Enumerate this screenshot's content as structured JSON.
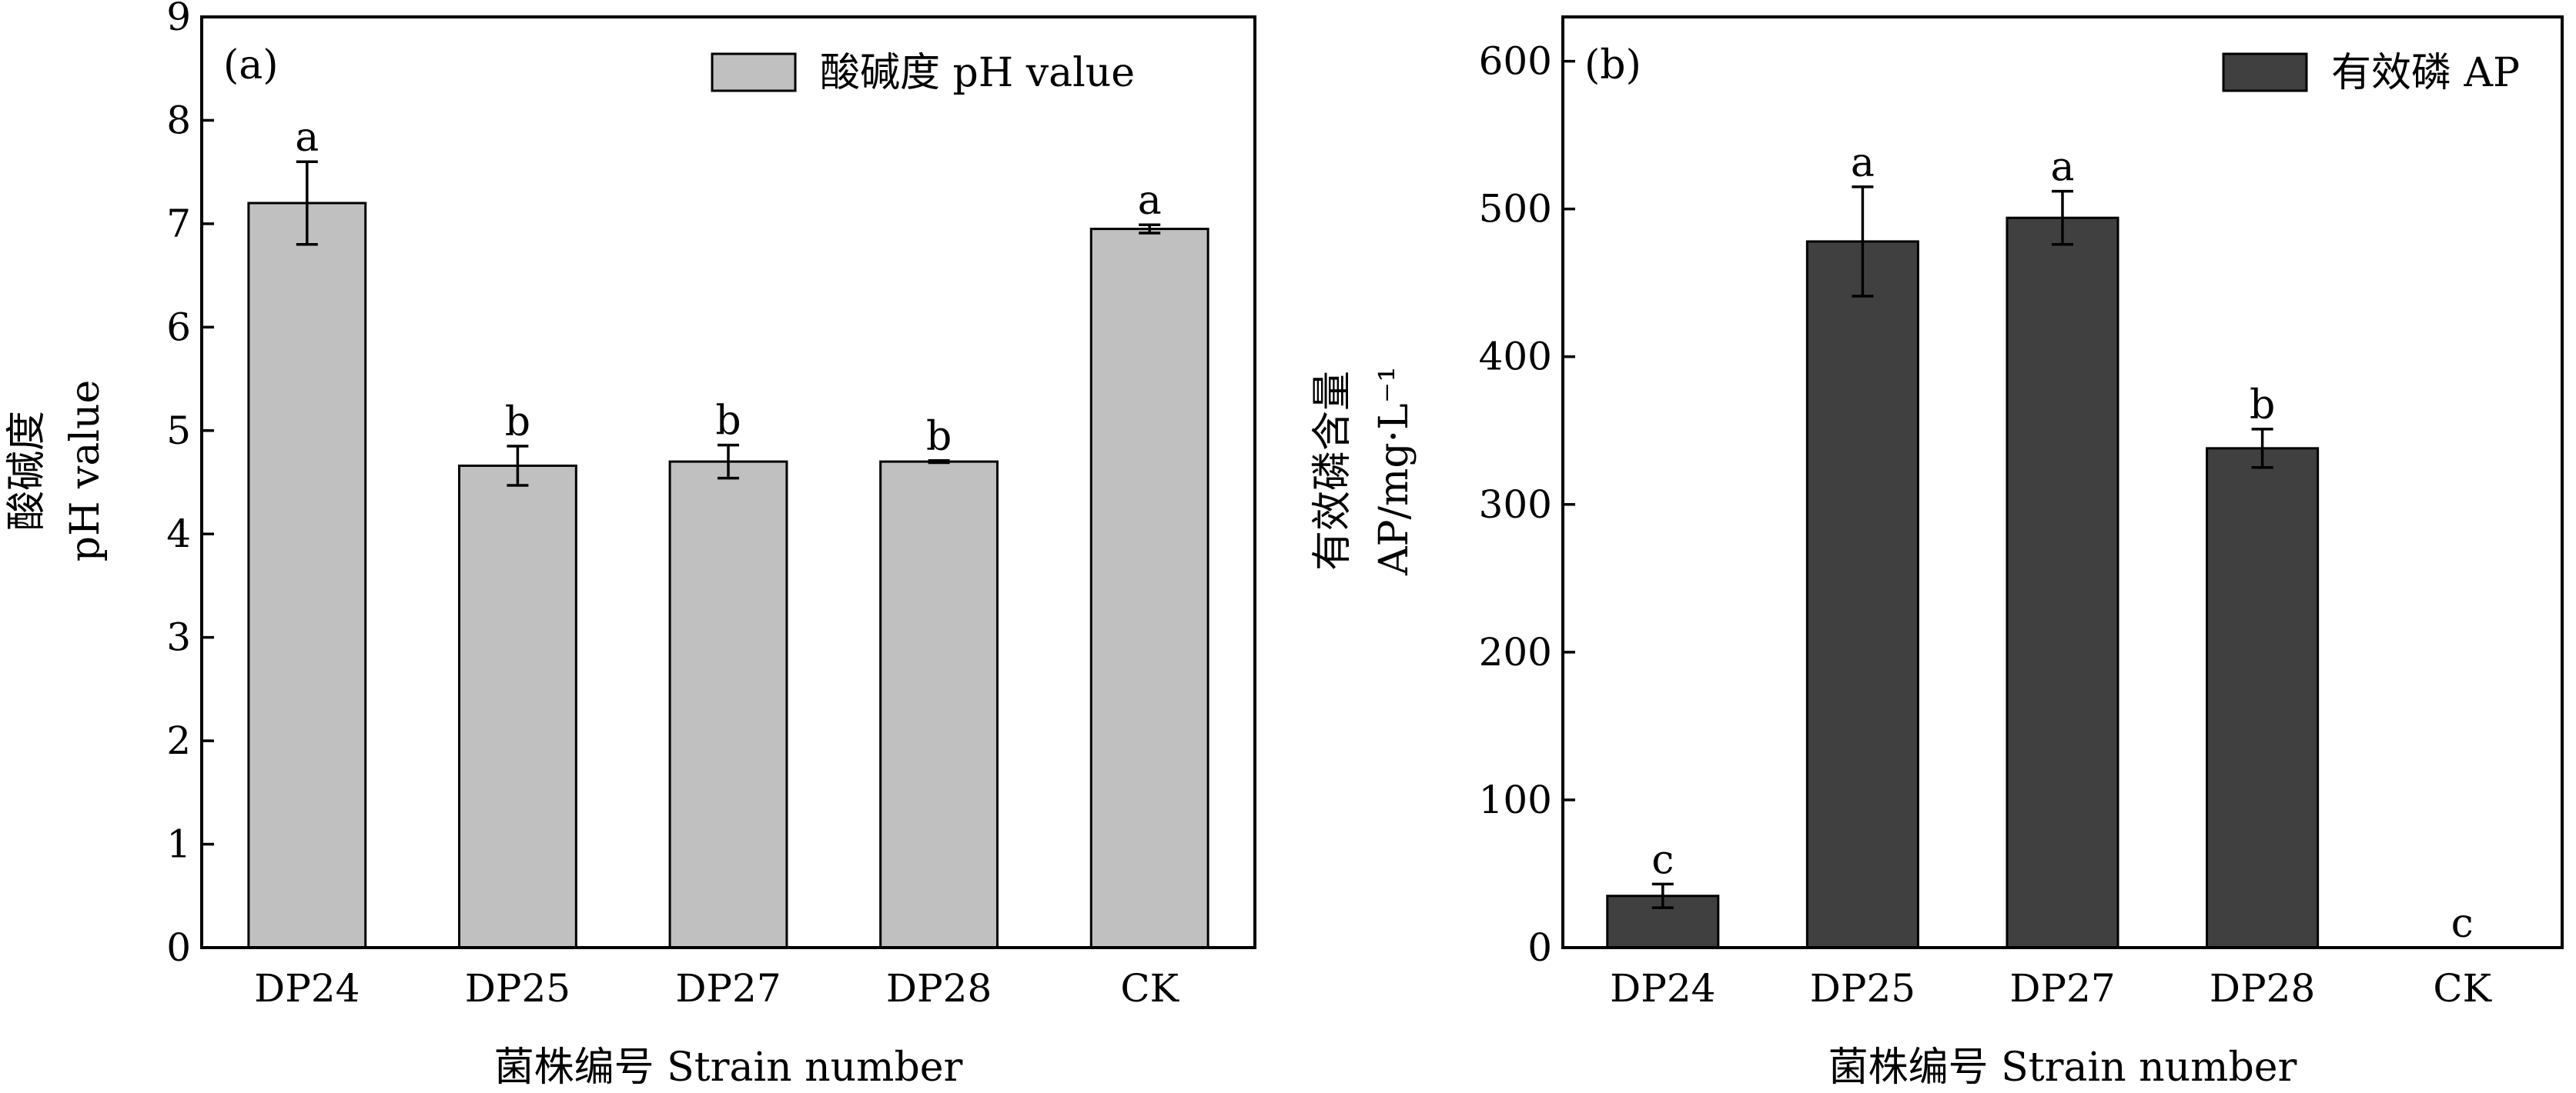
{
  "chart_data": [
    {
      "type": "bar",
      "panel_label": "(a)",
      "categories": [
        "DP24",
        "DP25",
        "DP27",
        "DP28",
        "CK"
      ],
      "series": [
        {
          "name": "酸碱度 pH value",
          "values": [
            7.2,
            4.66,
            4.7,
            4.7,
            6.95
          ],
          "errors": [
            0.4,
            0.19,
            0.16,
            0.01,
            0.04
          ],
          "significance": [
            "a",
            "b",
            "b",
            "b",
            "a"
          ],
          "color": "#c0c0c0"
        }
      ],
      "yticks": [
        0,
        1,
        2,
        3,
        4,
        5,
        6,
        7,
        8,
        9
      ],
      "ylim": [
        0,
        9
      ],
      "ylabel_lines": [
        "酸碱度",
        "pH value"
      ],
      "xlabel": "菌株编号 Strain number",
      "legend_position": "top-right",
      "grid": false
    },
    {
      "type": "bar",
      "panel_label": "(b)",
      "categories": [
        "DP24",
        "DP25",
        "DP27",
        "DP28",
        "CK"
      ],
      "series": [
        {
          "name": "有效磷 AP",
          "values": [
            35,
            478,
            494,
            338,
            0
          ],
          "errors": [
            8,
            37,
            18,
            13,
            0
          ],
          "significance": [
            "c",
            "a",
            "a",
            "b",
            "c"
          ],
          "color": "#404040"
        }
      ],
      "yticks": [
        0,
        100,
        200,
        300,
        400,
        500,
        600
      ],
      "ylim": [
        0,
        630
      ],
      "ylabel_lines": [
        "有效磷含量",
        "AP/mg·L⁻¹"
      ],
      "xlabel": "菌株编号 Strain number",
      "legend_position": "top-right",
      "grid": false
    }
  ]
}
